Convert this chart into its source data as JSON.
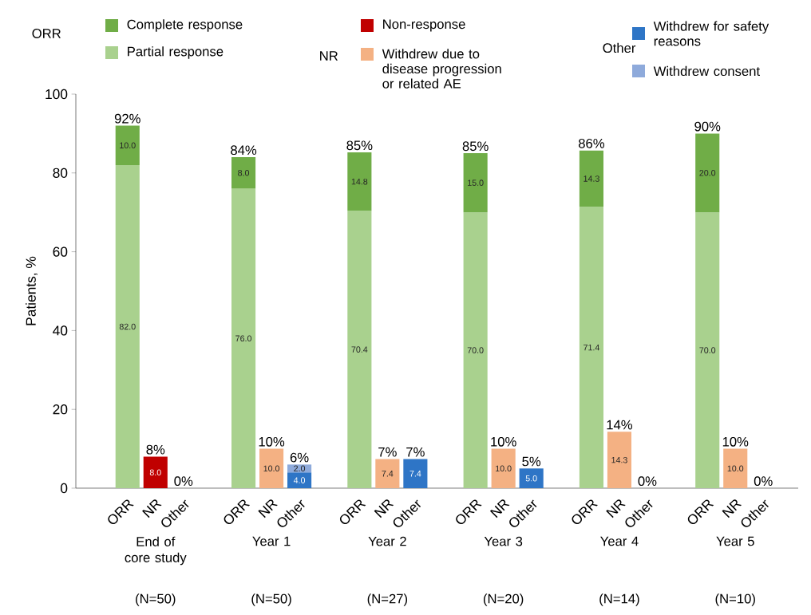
{
  "chart_data": {
    "type": "bar",
    "stacked": true,
    "legend": "top",
    "ylabel": "Patients, %",
    "ylim": [
      0,
      100
    ],
    "yticks": [
      0,
      20,
      40,
      60,
      80,
      100
    ],
    "categories": [
      "ORR",
      "NR",
      "Other",
      "ORR",
      "NR",
      "Other",
      "ORR",
      "NR",
      "Other",
      "ORR",
      "NR",
      "Other",
      "ORR",
      "NR",
      "Other",
      "ORR",
      "NR",
      "Other"
    ],
    "series": [
      {
        "name": "Partial response",
        "color": "#a9d18e",
        "values": [
          82.0,
          null,
          null,
          76.0,
          null,
          null,
          70.4,
          null,
          null,
          70.0,
          null,
          null,
          71.4,
          null,
          null,
          70.0,
          null,
          null
        ],
        "value_labels": [
          "82.0",
          null,
          null,
          "76.0",
          null,
          null,
          "70.4",
          null,
          null,
          "70.0",
          null,
          null,
          "71.4",
          null,
          null,
          "70.0",
          null,
          null
        ]
      },
      {
        "name": "Complete response",
        "color": "#70ad47",
        "values": [
          10.0,
          null,
          null,
          8.0,
          null,
          null,
          14.8,
          null,
          null,
          15.0,
          null,
          null,
          14.3,
          null,
          null,
          20.0,
          null,
          null
        ],
        "value_labels": [
          "10.0",
          null,
          null,
          "8.0",
          null,
          null,
          "14.8",
          null,
          null,
          "15.0",
          null,
          null,
          "14.3",
          null,
          null,
          "20.0",
          null,
          null
        ]
      },
      {
        "name": "Non-response",
        "color": "#c00000",
        "values": [
          null,
          8.0,
          null,
          null,
          null,
          null,
          null,
          null,
          null,
          null,
          null,
          null,
          null,
          null,
          null,
          null,
          null,
          null
        ],
        "value_labels": [
          null,
          "8.0",
          null,
          null,
          null,
          null,
          null,
          null,
          null,
          null,
          null,
          null,
          null,
          null,
          null,
          null,
          null,
          null
        ]
      },
      {
        "name": "Withdrew due to disease progression or related AE",
        "color": "#f4b183",
        "values": [
          null,
          null,
          null,
          null,
          10.0,
          null,
          null,
          7.4,
          null,
          null,
          10.0,
          null,
          null,
          14.3,
          null,
          null,
          10.0,
          null
        ],
        "value_labels": [
          null,
          null,
          null,
          null,
          "10.0",
          null,
          null,
          "7.4",
          null,
          null,
          "10.0",
          null,
          null,
          "14.3",
          null,
          null,
          "10.0",
          null
        ]
      },
      {
        "name": "Withdrew for safety reasons",
        "color": "#2e75c6",
        "values": [
          null,
          null,
          null,
          null,
          null,
          4.0,
          null,
          null,
          7.4,
          null,
          null,
          5.0,
          null,
          null,
          null,
          null,
          null,
          null
        ],
        "value_labels": [
          null,
          null,
          null,
          null,
          null,
          "4.0",
          null,
          null,
          "7.4",
          null,
          null,
          "5.0",
          null,
          null,
          null,
          null,
          null,
          null
        ]
      },
      {
        "name": "Withdrew consent",
        "color": "#8eaadb",
        "values": [
          null,
          null,
          null,
          null,
          null,
          2.0,
          null,
          null,
          null,
          null,
          null,
          null,
          null,
          null,
          null,
          null,
          null,
          null
        ],
        "value_labels": [
          null,
          null,
          null,
          null,
          null,
          "2.0",
          null,
          null,
          null,
          null,
          null,
          null,
          null,
          null,
          null,
          null,
          null,
          null
        ]
      }
    ],
    "totals": [
      "92%",
      "8%",
      "0%",
      "84%",
      "10%",
      "6%",
      "85%",
      "7%",
      "7%",
      "85%",
      "10%",
      "5%",
      "86%",
      "14%",
      "0%",
      "90%",
      "10%",
      "0%"
    ],
    "annotations": [
      "End of core study",
      "Year 1",
      "Year 2",
      "Year 3",
      "Year 4",
      "Year 5",
      "(N=50)",
      "(N=50)",
      "(N=27)",
      "(N=20)",
      "(N=14)",
      "(N=10)",
      "ORR",
      "NR",
      "Other"
    ]
  }
}
